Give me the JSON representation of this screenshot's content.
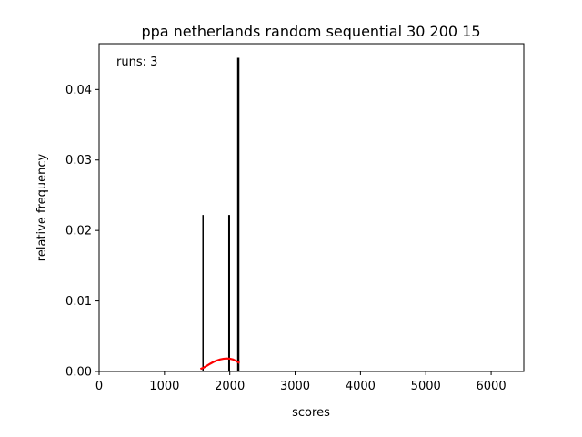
{
  "chart_data": {
    "type": "bar",
    "title": "ppa netherlands random sequential 30 200 15",
    "xlabel": "scores",
    "ylabel": "relative frequency",
    "annotation": "runs: 3",
    "xlim": [
      0,
      6500
    ],
    "ylim": [
      0,
      0.0465
    ],
    "xticks": [
      0,
      1000,
      2000,
      3000,
      4000,
      5000,
      6000
    ],
    "yticks": [
      0.0,
      0.01,
      0.02,
      0.03,
      0.04
    ],
    "ytick_labels": [
      "0.00",
      "0.01",
      "0.02",
      "0.03",
      "0.04"
    ],
    "grid": false,
    "bars": [
      {
        "x": 1590,
        "value": 0.0222
      },
      {
        "x": 1990,
        "value": 0.0222
      },
      {
        "x": 2130,
        "value": 0.0445
      }
    ],
    "density_curve": {
      "color": "#ff0000",
      "x": [
        1550,
        1600,
        1650,
        1700,
        1750,
        1800,
        1850,
        1900,
        1950,
        2000,
        2050,
        2100,
        2150
      ],
      "y": [
        0.00035,
        0.00055,
        0.00082,
        0.0011,
        0.00135,
        0.00155,
        0.0017,
        0.0018,
        0.00185,
        0.00182,
        0.0017,
        0.00148,
        0.0012
      ]
    }
  }
}
